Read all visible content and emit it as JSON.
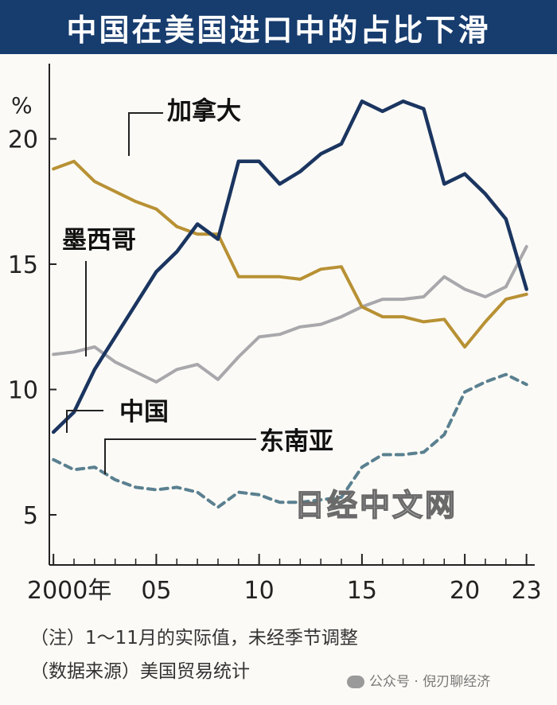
{
  "header": {
    "title": "中国在美国进口中的占比下滑"
  },
  "chart_data": {
    "type": "line",
    "title": "中国在美国进口中的占比下滑",
    "ylabel": "%",
    "xlabel": "",
    "ylim": [
      3,
      23
    ],
    "yticks": [
      5,
      10,
      15,
      20
    ],
    "xlim": [
      1999.8,
      2023.4
    ],
    "xticks": [
      {
        "value": 2000,
        "label": "2000年"
      },
      {
        "value": 2005,
        "label": "05"
      },
      {
        "value": 2010,
        "label": "10"
      },
      {
        "value": 2015,
        "label": "15"
      },
      {
        "value": 2020,
        "label": "20"
      },
      {
        "value": 2023,
        "label": "23"
      }
    ],
    "grid": false,
    "legend": "inline labels",
    "x": [
      2000,
      2001,
      2002,
      2003,
      2004,
      2005,
      2006,
      2007,
      2008,
      2009,
      2010,
      2011,
      2012,
      2013,
      2014,
      2015,
      2016,
      2017,
      2018,
      2019,
      2020,
      2021,
      2022,
      2023
    ],
    "series": [
      {
        "name": "中国",
        "color": "#1b3560",
        "dash": false,
        "values": [
          8.3,
          9.1,
          10.8,
          12.1,
          13.4,
          14.7,
          15.5,
          16.6,
          16.0,
          19.1,
          19.1,
          18.2,
          18.7,
          19.4,
          19.8,
          21.5,
          21.1,
          21.5,
          21.2,
          18.2,
          18.6,
          17.8,
          16.8,
          14.0
        ]
      },
      {
        "name": "加拿大",
        "color": "#b89134",
        "dash": false,
        "values": [
          18.8,
          19.1,
          18.3,
          17.9,
          17.5,
          17.2,
          16.5,
          16.2,
          16.2,
          14.5,
          14.5,
          14.5,
          14.4,
          14.8,
          14.9,
          13.3,
          12.9,
          12.9,
          12.7,
          12.8,
          11.7,
          12.7,
          13.6,
          13.8
        ]
      },
      {
        "name": "墨西哥",
        "color": "#a8a8ac",
        "dash": false,
        "values": [
          11.4,
          11.5,
          11.7,
          11.1,
          10.7,
          10.3,
          10.8,
          11.0,
          10.4,
          11.3,
          12.1,
          12.2,
          12.5,
          12.6,
          12.9,
          13.3,
          13.6,
          13.6,
          13.7,
          14.5,
          14.0,
          13.7,
          14.1,
          15.7
        ]
      },
      {
        "name": "东南亚",
        "color": "#5a8090",
        "dash": true,
        "values": [
          7.2,
          6.8,
          6.9,
          6.4,
          6.1,
          6.0,
          6.1,
          5.9,
          5.3,
          5.9,
          5.8,
          5.5,
          5.5,
          5.6,
          5.7,
          6.9,
          7.4,
          7.4,
          7.5,
          8.2,
          9.9,
          10.3,
          10.6,
          10.2
        ]
      }
    ],
    "annotations": [
      {
        "text": "%"
      },
      {
        "text": "日经中文网"
      }
    ]
  },
  "footer": {
    "note": "（注）1～11月的实际值，未经季节调整",
    "source": "（数据来源）美国贸易统计",
    "watermark": "公众号 · 倪刃聊经济"
  }
}
